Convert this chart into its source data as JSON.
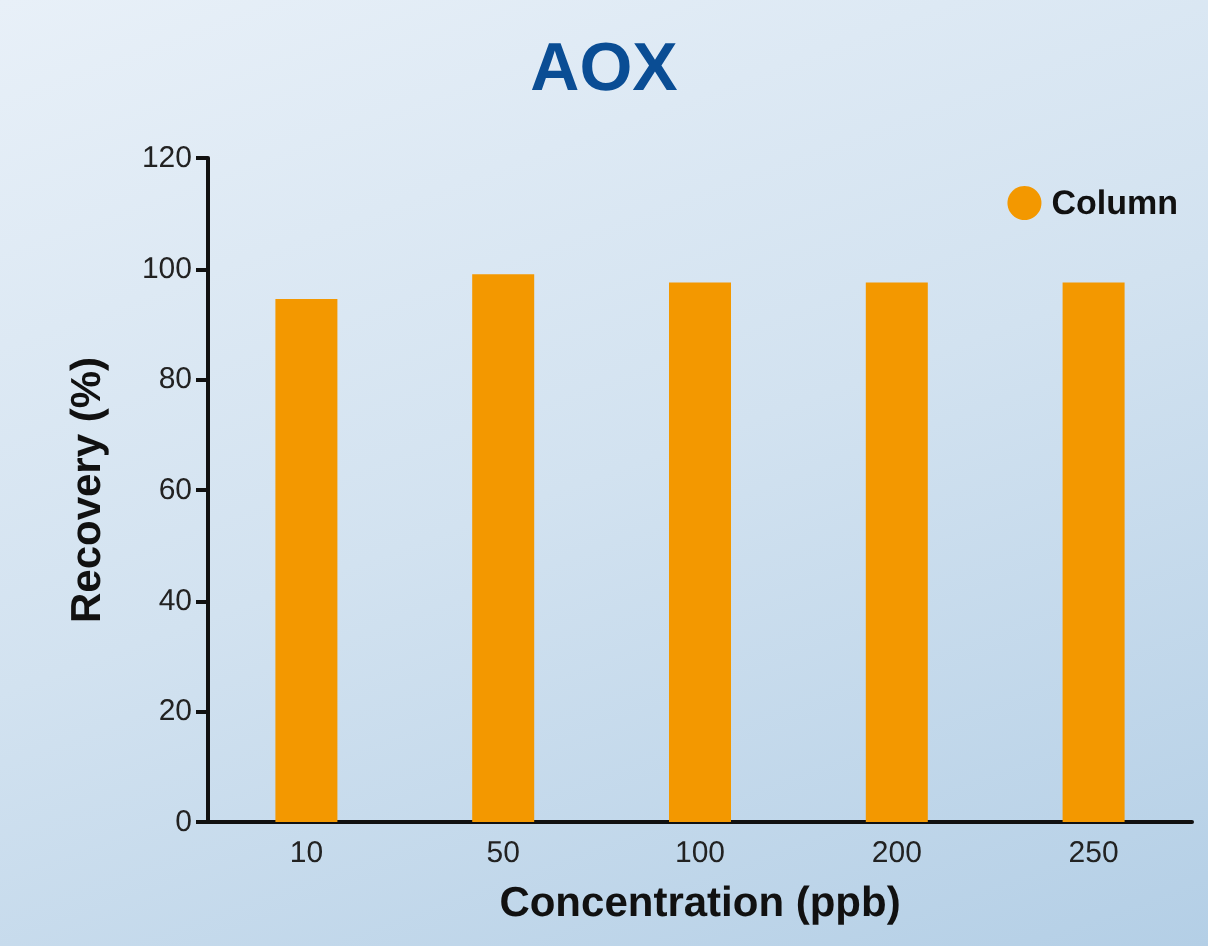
{
  "chart_data": {
    "type": "bar",
    "title": "AOX",
    "xlabel": "Concentration (ppb)",
    "ylabel": "Recovery (%)",
    "categories": [
      "10",
      "50",
      "100",
      "200",
      "250"
    ],
    "series": [
      {
        "name": "Column",
        "color": "#f39800",
        "values": [
          94.5,
          99,
          97.5,
          97.5,
          97.5
        ]
      }
    ],
    "ylim": [
      0,
      120
    ],
    "yticks": [
      0,
      20,
      40,
      60,
      80,
      100,
      120
    ],
    "grid": false,
    "legend": "top right"
  }
}
